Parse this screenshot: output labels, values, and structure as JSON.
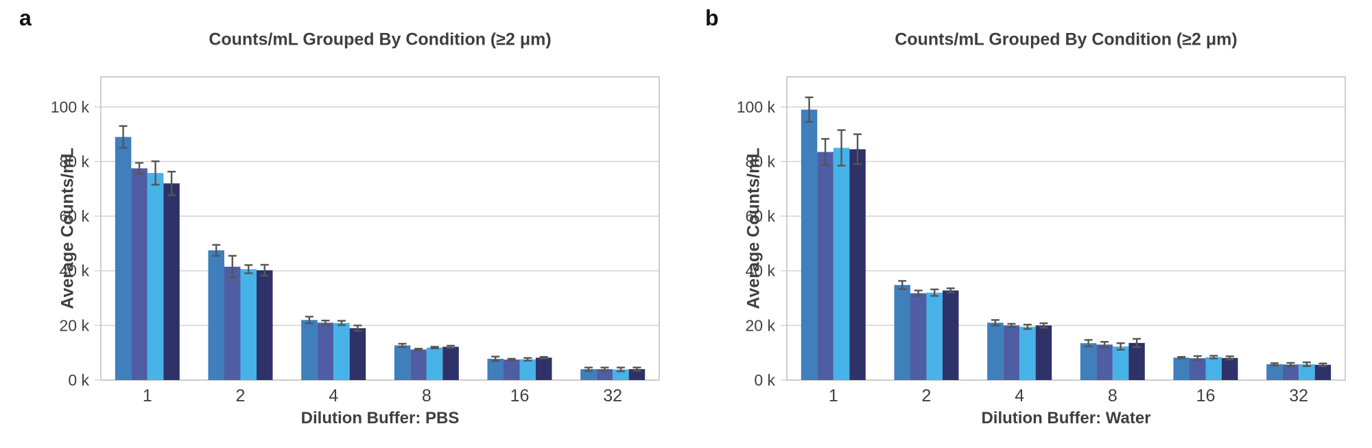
{
  "colors": {
    "background": "#FFFFFF",
    "bar_series": [
      "#3E7FBC",
      "#4F5DA4",
      "#47B2E8",
      "#2F3268"
    ],
    "error_bar": "#555555",
    "gridline": "#D6D6D6",
    "plot_border": "#C9C9C9",
    "tick_text": "#404040",
    "title_text": "#3F3F3F",
    "axis_title_text": "#3F3F3F",
    "panel_letter_text": "#111111"
  },
  "chart_data": [
    {
      "type": "bar",
      "panel_letter": "a",
      "title": "Counts/mL Grouped By Condition (≥2 μm)",
      "xlabel": "Dilution Buffer: PBS",
      "ylabel": "Average Counts/mL",
      "categories": [
        "1",
        "2",
        "4",
        "8",
        "16",
        "32"
      ],
      "y_ticks": [
        {
          "value": 0,
          "label": "0 k"
        },
        {
          "value": 20000,
          "label": "20 k"
        },
        {
          "value": 40000,
          "label": "40 k"
        },
        {
          "value": 60000,
          "label": "60 k"
        },
        {
          "value": 80000,
          "label": "80 k"
        },
        {
          "value": 100000,
          "label": "100 k"
        }
      ],
      "ylim": [
        0,
        111000
      ],
      "grid": "horizontal",
      "legend": "none",
      "error_bars": true,
      "series": [
        {
          "color": "#3E7FBC",
          "values": [
            89000,
            47500,
            22000,
            12700,
            7800,
            4000
          ],
          "errors": [
            4000,
            2000,
            1200,
            600,
            800,
            600
          ]
        },
        {
          "color": "#4F5DA4",
          "values": [
            77500,
            41500,
            21000,
            11200,
            7500,
            4000
          ],
          "errors": [
            2000,
            4000,
            800,
            300,
            300,
            600
          ]
        },
        {
          "color": "#47B2E8",
          "values": [
            75800,
            40600,
            20900,
            11900,
            7600,
            3900
          ],
          "errors": [
            4300,
            1500,
            800,
            300,
            500,
            700
          ]
        },
        {
          "color": "#2F3268",
          "values": [
            72000,
            40200,
            19000,
            12200,
            8200,
            4000
          ],
          "errors": [
            4300,
            2000,
            1000,
            400,
            300,
            600
          ]
        }
      ]
    },
    {
      "type": "bar",
      "panel_letter": "b",
      "title": "Counts/mL Grouped By Condition (≥2 μm)",
      "xlabel": "Dilution Buffer: Water",
      "ylabel": "Average Counts/mL",
      "categories": [
        "1",
        "2",
        "4",
        "8",
        "16",
        "32"
      ],
      "y_ticks": [
        {
          "value": 0,
          "label": "0 k"
        },
        {
          "value": 20000,
          "label": "20 k"
        },
        {
          "value": 40000,
          "label": "40 k"
        },
        {
          "value": 60000,
          "label": "60 k"
        },
        {
          "value": 80000,
          "label": "80 k"
        },
        {
          "value": 100000,
          "label": "100 k"
        }
      ],
      "ylim": [
        0,
        111000
      ],
      "grid": "horizontal",
      "legend": "none",
      "error_bars": true,
      "series": [
        {
          "color": "#3E7FBC",
          "values": [
            99000,
            34800,
            21000,
            13500,
            8200,
            5800
          ],
          "errors": [
            4500,
            1500,
            1000,
            1200,
            300,
            400
          ]
        },
        {
          "color": "#4F5DA4",
          "values": [
            83500,
            31800,
            20000,
            13000,
            8000,
            5700
          ],
          "errors": [
            4800,
            1000,
            600,
            1000,
            800,
            600
          ]
        },
        {
          "color": "#47B2E8",
          "values": [
            85000,
            32000,
            19500,
            12300,
            8400,
            5800
          ],
          "errors": [
            6500,
            1200,
            800,
            1200,
            500,
            700
          ]
        },
        {
          "color": "#2F3268",
          "values": [
            84500,
            32800,
            20000,
            13600,
            8100,
            5600
          ],
          "errors": [
            5500,
            800,
            800,
            1500,
            600,
            500
          ]
        }
      ]
    }
  ]
}
